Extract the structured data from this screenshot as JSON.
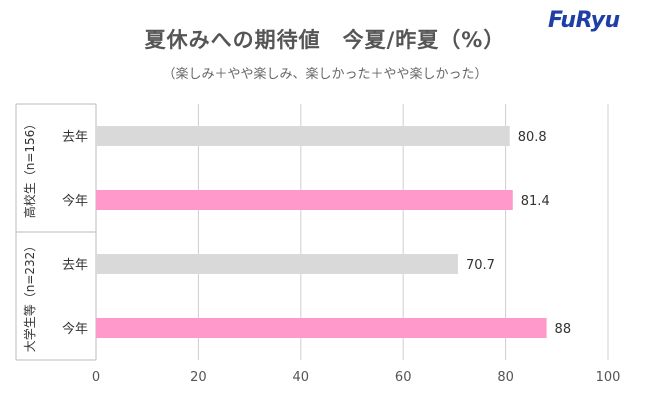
{
  "brand": {
    "logo_text": "FuRyu",
    "logo_color": "#1f3fa6"
  },
  "title": "夏休みへの期待値　今夏/昨夏（%）",
  "subtitle": "（楽しみ＋やや楽しみ、楽しかった＋やや楽しかった）",
  "colors": {
    "last_year": "#d9d9d9",
    "this_year": "#ff99cc",
    "grid": "#d0d0d0"
  },
  "chart_data": {
    "type": "bar",
    "orientation": "horizontal",
    "xlim": [
      0,
      100
    ],
    "x_ticks": [
      0,
      20,
      40,
      60,
      80,
      100
    ],
    "groups": [
      {
        "label": "高校生（n=156）",
        "bars": [
          {
            "label": "去年",
            "value": 80.8,
            "value_label": "80.8",
            "series": "last_year"
          },
          {
            "label": "今年",
            "value": 81.4,
            "value_label": "81.4",
            "series": "this_year"
          }
        ]
      },
      {
        "label": "大学生等（n=232）",
        "bars": [
          {
            "label": "去年",
            "value": 70.7,
            "value_label": "70.7",
            "series": "last_year"
          },
          {
            "label": "今年",
            "value": 88,
            "value_label": "88",
            "series": "this_year"
          }
        ]
      }
    ]
  }
}
